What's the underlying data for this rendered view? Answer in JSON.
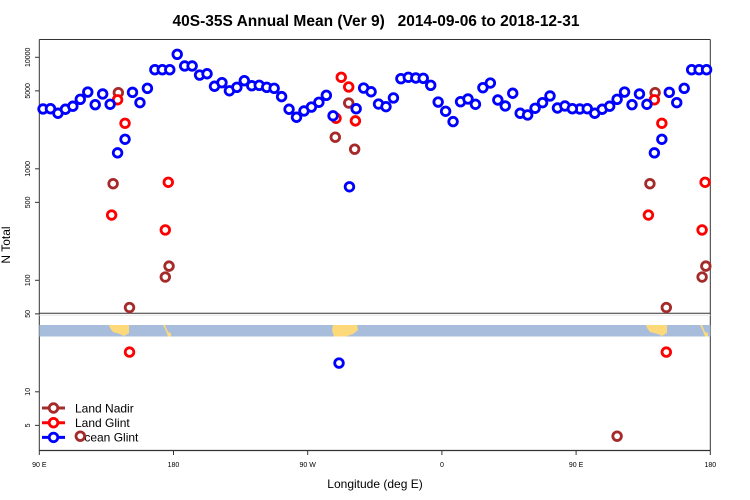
{
  "chart_data": {
    "type": "scatter",
    "title": "40S-35S Annual Mean (Ver 9)   2014-09-06 to 2018-12-31",
    "xlabel": "Longitude (deg E)",
    "ylabel": "N Total",
    "x_range_deg": [
      "90 E",
      "180"
    ],
    "x_ticks": [
      "90 E",
      "180",
      "90 W",
      "0",
      "90 E",
      "180"
    ],
    "y_scale": "log",
    "y_ticks_upper": [
      "10000",
      "5000",
      "1000",
      "500",
      "100",
      "50"
    ],
    "y_ticks_lower": [
      "10",
      "5"
    ],
    "legend_placement": "bottom-left",
    "grid": false,
    "series": [
      {
        "name": "Land Nadir",
        "color": "#a52a2a",
        "points": [
          [
            143,
            4820
          ],
          [
            139.5,
            735
          ],
          [
            177,
            134
          ],
          [
            174.5,
            107
          ],
          [
            150.5,
            57
          ],
          [
            117.5,
            4
          ],
          [
            -62.5,
            3890
          ],
          [
            -71.5,
            1920
          ],
          [
            -58.5,
            1500
          ]
        ]
      },
      {
        "name": "Land Glint",
        "color": "#ff0000",
        "points": [
          [
            142.5,
            4160
          ],
          [
            147.5,
            2560
          ],
          [
            138.5,
            385
          ],
          [
            176.5,
            757
          ],
          [
            174.5,
            283
          ],
          [
            150.5,
            22.7
          ],
          [
            -67.5,
            6620
          ],
          [
            -62.5,
            5420
          ],
          [
            -71,
            2840
          ],
          [
            -58,
            2690
          ]
        ]
      },
      {
        "name": "Ocean Glint",
        "color": "#0000ff",
        "points": [
          [
            92.5,
            3440
          ],
          [
            97.5,
            3460
          ],
          [
            102.5,
            3150
          ],
          [
            107.5,
            3420
          ],
          [
            112.5,
            3640
          ],
          [
            117.5,
            4200
          ],
          [
            122.5,
            4880
          ],
          [
            127.5,
            3760
          ],
          [
            132.5,
            4690
          ],
          [
            137.5,
            3790
          ],
          [
            142.5,
            1390
          ],
          [
            147.5,
            1840
          ],
          [
            152.5,
            4850
          ],
          [
            157.5,
            3920
          ],
          [
            162.5,
            5270
          ],
          [
            167.5,
            7740
          ],
          [
            172.5,
            7740
          ],
          [
            177.5,
            7740
          ],
          [
            -177.5,
            10640
          ],
          [
            -172.5,
            8360
          ],
          [
            -167.5,
            8360
          ],
          [
            -162.5,
            6930
          ],
          [
            -157.5,
            7120
          ],
          [
            -152.5,
            5500
          ],
          [
            -147.5,
            5920
          ],
          [
            -142.5,
            5010
          ],
          [
            -137.5,
            5380
          ],
          [
            -132.5,
            6170
          ],
          [
            -127.5,
            5560
          ],
          [
            -122.5,
            5610
          ],
          [
            -117.5,
            5380
          ],
          [
            -112.5,
            5270
          ],
          [
            -107.5,
            4440
          ],
          [
            -102.5,
            3420
          ],
          [
            -97.5,
            2900
          ],
          [
            -92.5,
            3300
          ],
          [
            -87.5,
            3580
          ],
          [
            -82.5,
            3950
          ],
          [
            -77.5,
            4560
          ],
          [
            -73,
            2990
          ],
          [
            -69,
            18.1
          ],
          [
            -62,
            690
          ],
          [
            -57.5,
            3460
          ],
          [
            -52.5,
            5300
          ],
          [
            -47.5,
            4910
          ],
          [
            -42.5,
            3810
          ],
          [
            -37.5,
            3610
          ],
          [
            -32.5,
            4320
          ],
          [
            -27.5,
            6430
          ],
          [
            -22.5,
            6620
          ],
          [
            -17.5,
            6520
          ],
          [
            -12.5,
            6480
          ],
          [
            -7.5,
            5610
          ],
          [
            -2.5,
            3970
          ],
          [
            2.5,
            3280
          ],
          [
            7.5,
            2650
          ],
          [
            12.5,
            4000
          ],
          [
            17.5,
            4230
          ],
          [
            22.5,
            3790
          ],
          [
            27.5,
            5340
          ],
          [
            32.5,
            5880
          ],
          [
            37.5,
            4140
          ],
          [
            42.5,
            3660
          ],
          [
            47.5,
            4760
          ],
          [
            52.5,
            3150
          ],
          [
            57.5,
            3040
          ],
          [
            62.5,
            3490
          ],
          [
            67.5,
            3920
          ],
          [
            72.5,
            4500
          ],
          [
            77.5,
            3510
          ],
          [
            82.5,
            3660
          ],
          [
            87.5,
            3460
          ]
        ]
      }
    ]
  },
  "colors": {
    "ocean_strip": "#a7bddb",
    "land": "#fdd97a"
  }
}
